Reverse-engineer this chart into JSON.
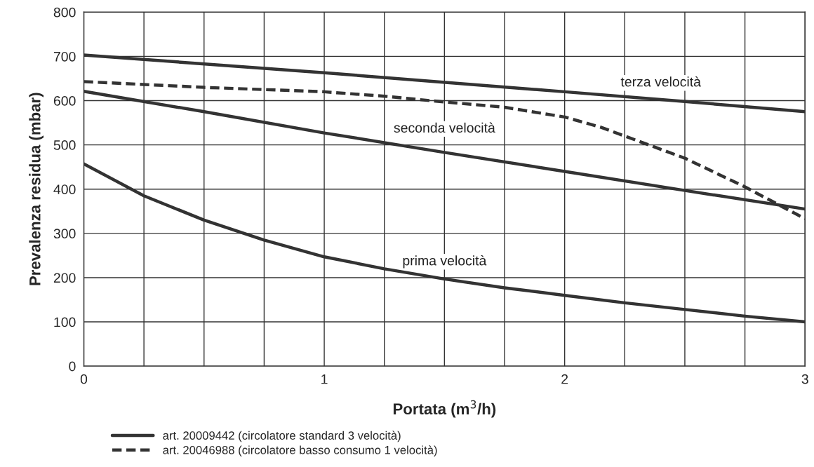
{
  "chart_data": {
    "type": "line",
    "xlabel": "Portata (m$^{3}$/h)",
    "ylabel": "Prevalenza residua (mbar)",
    "xlim": [
      0,
      3
    ],
    "ylim": [
      0,
      800
    ],
    "xticks": [
      0,
      {
        "value": 0.25,
        "label": null
      },
      {
        "value": 0.5,
        "label": null
      },
      {
        "value": 0.75,
        "label": null
      },
      1,
      {
        "value": 1.25,
        "label": null
      },
      {
        "value": 1.5,
        "label": null
      },
      {
        "value": 1.75,
        "label": null
      },
      2,
      {
        "value": 2.25,
        "label": null
      },
      {
        "value": 2.5,
        "label": null
      },
      {
        "value": 2.75,
        "label": null
      },
      3
    ],
    "yticks": [
      0,
      100,
      200,
      300,
      400,
      500,
      600,
      700,
      800
    ],
    "grid": true,
    "legend": "bottom",
    "series": [
      {
        "name": "art. 20009442 (circolatore standard 3 velocità)",
        "color": "#333333",
        "line_style": "solid",
        "x": [
          0,
          1,
          2,
          2.5,
          3
        ],
        "values": [
          703,
          663,
          620,
          598,
          575
        ]
      },
      {
        "color": "#333333",
        "line_style": "solid",
        "x": [
          0,
          0.5,
          1,
          1.5,
          2,
          2.5,
          3
        ],
        "values": [
          621,
          575,
          527,
          483,
          440,
          397,
          355
        ]
      },
      {
        "color": "#333333",
        "line_style": "solid",
        "x": [
          0,
          0.25,
          0.5,
          0.75,
          1,
          1.25,
          1.5,
          1.75,
          2,
          2.25,
          2.5,
          2.75,
          3
        ],
        "values": [
          457,
          385,
          330,
          285,
          247,
          220,
          197,
          177,
          160,
          143,
          128,
          113,
          100
        ]
      },
      {
        "name": "art. 20046988 (circolatore basso consumo 1 velocità)",
        "color": "#333333",
        "line_style": "dashed",
        "x": [
          0,
          0.5,
          1,
          1.25,
          1.5,
          1.75,
          2,
          2.15,
          2.25,
          2.5,
          2.75,
          3
        ],
        "values": [
          643,
          630,
          620,
          610,
          597,
          585,
          563,
          540,
          520,
          470,
          405,
          333
        ]
      }
    ],
    "annotations": [
      "terza velocità",
      "seconda velocità",
      "prima velocità"
    ]
  }
}
